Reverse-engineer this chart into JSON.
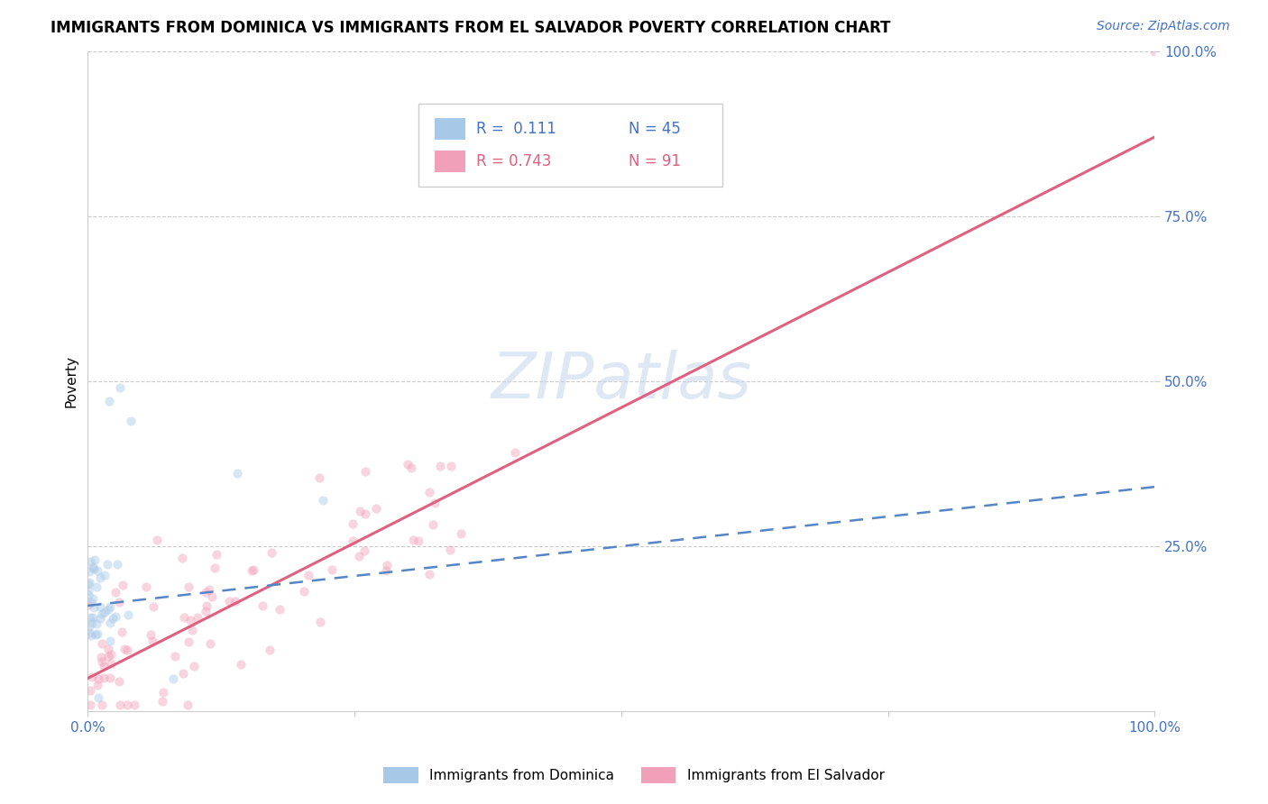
{
  "title": "IMMIGRANTS FROM DOMINICA VS IMMIGRANTS FROM EL SALVADOR POVERTY CORRELATION CHART",
  "source": "Source: ZipAtlas.com",
  "ylabel": "Poverty",
  "xlabel": "",
  "xlim": [
    0.0,
    1.0
  ],
  "ylim": [
    0.0,
    1.0
  ],
  "watermark": "ZIPatlas",
  "series": [
    {
      "label": "Immigrants from Dominica",
      "R": 0.111,
      "N": 45,
      "color": "#a8c8e8",
      "line_color": "#5585c5",
      "line_style": "--",
      "slope": 0.18,
      "intercept": 0.16
    },
    {
      "label": "Immigrants from El Salvador",
      "R": 0.743,
      "N": 91,
      "color": "#f0a0b8",
      "line_color": "#e06080",
      "line_style": "-",
      "slope": 0.82,
      "intercept": 0.05
    }
  ],
  "grid_color": "#cccccc",
  "background_color": "#ffffff",
  "title_fontsize": 12,
  "axis_label_fontsize": 11,
  "tick_fontsize": 11,
  "legend_fontsize": 12,
  "watermark_color": "#c8d8ee",
  "watermark_fontsize": 52,
  "source_fontsize": 10,
  "scatter_alpha": 0.45,
  "scatter_size": 55
}
